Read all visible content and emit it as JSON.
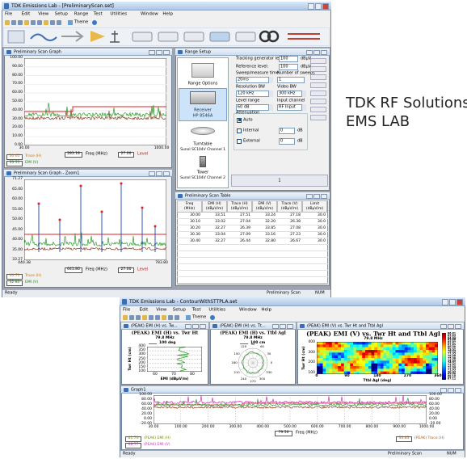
{
  "top": {
    "title": "TDK Emissions Lab - [PreliminaryScan.set]",
    "menu": [
      "File",
      "Edit",
      "View",
      "Setup",
      "Range",
      "Test",
      "Utilities",
      "Window",
      "Help"
    ],
    "theme": "Theme",
    "graph": {
      "title": "Preliminary Scan Graph",
      "yticks": [
        "100.00",
        "90.00",
        "80.00",
        "70.00",
        "60.00",
        "50.00",
        "40.00",
        "30.00",
        "20.00",
        "10.00",
        "0.00"
      ],
      "xticks": [
        "30.00",
        "1000.00"
      ],
      "x_label": "Freq (MHz)",
      "marker_freq": "283.18",
      "marker_level": "27.00",
      "level_label": "Level",
      "readouts": [
        {
          "value": "30.61",
          "name": "Trace (H)"
        },
        {
          "value": "33.51",
          "name": "EMI (V)"
        }
      ]
    },
    "zoom": {
      "title": "Preliminary Scan Graph - Zoom1",
      "yticks": [
        "71.27",
        "65.00",
        "60.00",
        "55.00",
        "50.00",
        "45.00",
        "40.00",
        "35.00",
        "33.27"
      ],
      "xticks": [
        "440.38",
        "783.80"
      ],
      "x_label": "Freq (MHz)",
      "marker_freq": "641.80",
      "marker_level": "27.00",
      "level_label": "Level",
      "readouts": [
        {
          "value": "40.71",
          "name": "Trace (H)"
        },
        {
          "value": "32.80",
          "name": "EMI (V)"
        }
      ]
    },
    "range_setup": {
      "title": "Range Setup",
      "devices": [
        [
          "Range Options"
        ],
        [
          "Receiver",
          "HP 8546A"
        ],
        [
          "Turntable",
          "Sunol SC104V Channel 1"
        ],
        [
          "Tower",
          "Sunol SC104V Channel 2"
        ]
      ],
      "tracking": {
        "label": "Tracking generator level:",
        "value": "100",
        "unit": "dBµV"
      },
      "reference": {
        "label": "Reference level:",
        "value": "100",
        "unit": "dBµV"
      },
      "sweep_time": {
        "label": "Sweep/measure time",
        "value": "20ms"
      },
      "sweeps": {
        "label": "Number of sweeps",
        "value": "1"
      },
      "rbw": {
        "label": "Resolution BW",
        "value": "120 kHz"
      },
      "vbw": {
        "label": "Video BW",
        "value": "300 kHz"
      },
      "level_range": {
        "label": "Level range",
        "value": "60 dB"
      },
      "input": {
        "label": "Input channel",
        "value": "RF Input"
      },
      "attenuation": {
        "label": "Attenuation",
        "auto": "Auto",
        "internal": "Internal",
        "internal_value": "0",
        "external": "External",
        "external_value": "0",
        "unit": "dB"
      },
      "page": "1"
    },
    "table": {
      "title": "Preliminary Scan Table",
      "headers": [
        [
          "Freq",
          "(MHz)"
        ],
        [
          "EMI (H)",
          "(dBµV/m)"
        ],
        [
          "Trace (H)",
          "(dBµV/m)"
        ],
        [
          "EMI (V)",
          "(dBµV/m)"
        ],
        [
          "Trace (V)",
          "(dBµV/m)"
        ],
        [
          "Limit",
          "(dBµV/m)"
        ]
      ],
      "rows": [
        [
          "30.00",
          "33.51",
          "27.51",
          "33.24",
          "27.18",
          "30.0"
        ],
        [
          "30.10",
          "33.02",
          "27.04",
          "32.20",
          "26.38",
          "30.0"
        ],
        [
          "30.20",
          "32.27",
          "26.39",
          "33.85",
          "27.08",
          "30.0"
        ],
        [
          "30.30",
          "33.04",
          "27.09",
          "33.16",
          "27.23",
          "30.0"
        ],
        [
          "30.40",
          "32.27",
          "26.44",
          "32.80",
          "26.67",
          "30.0"
        ]
      ]
    },
    "status": [
      "Ready",
      "Preliminary Scan",
      "NUM"
    ]
  },
  "caption": {
    "line1": "TDK RF Solutions",
    "line2": "EMS LAB"
  },
  "bottom": {
    "title": "TDK Emissions Lab - ContourWithSTTPLA.set",
    "menu": [
      "File",
      "Edit",
      "View",
      "Setup",
      "Test",
      "Utilities",
      "Window",
      "Help"
    ],
    "theme": "Theme",
    "panel1": {
      "window_title": "(PEAK) EMI (H) vs. Tw...",
      "title": "(PEAK) EMI (H) vs. Twr Ht",
      "freq": "79.8 MHz",
      "legend": "100 deg",
      "y_label": "Twr Ht (cm)",
      "yticks": [
        "400",
        "350",
        "300",
        "250",
        "200",
        "150",
        "100"
      ],
      "xticks": [
        "60",
        "70",
        "80"
      ],
      "x_label": "EMI (dBµV/m)"
    },
    "panel2": {
      "window_title": "(PEAK) EMI (H) vs. Tt...",
      "title": "(PEAK) EMI (H) vs. Ttbl Agl",
      "freq": "79.8 MHz",
      "legend": "100 cm",
      "angles": [
        "0",
        "30",
        "60",
        "90",
        "120",
        "150",
        "180",
        "210",
        "240",
        "270",
        "300",
        "330"
      ]
    },
    "panel3": {
      "window_title": "(PEAK) EMI (V) vs. Twr Ht and Ttbl Agl",
      "title": "(PEAK) EMI (V) vs. Twr Ht and Ttbl Agl",
      "freq": "79.8 MHz",
      "y_label": "Twr Ht (cm)",
      "yticks": [
        "400",
        "300",
        "200",
        "100"
      ],
      "xticks": [
        "0",
        "90",
        "180",
        "270",
        "360"
      ],
      "x_label": "Ttbl Agl (deg)",
      "colorbar": [
        "86.81",
        "85.83",
        "84.84",
        "83.86",
        "82.87",
        "81.89",
        "80.90",
        "79.92",
        "78.93",
        "77.95",
        "76.96",
        "75.98",
        "74.99",
        "74.01",
        "73.02",
        "72.04",
        "71.05",
        "70.07",
        "69.08",
        "68.10",
        "67.11"
      ]
    },
    "graph1": {
      "window_title": "Graph1",
      "yticks": [
        "100.00",
        "80.00",
        "60.00",
        "40.00",
        "20.00",
        "0.00",
        "-20.00"
      ],
      "xticks": [
        "30.00",
        "100.00",
        "200.00",
        "300.00",
        "400.00",
        "500.00",
        "600.00",
        "700.00",
        "800.00",
        "900.00",
        "1000.00"
      ],
      "x_label": "Freq (MHz)",
      "marker": "79.50",
      "readouts": [
        {
          "value": "61.70",
          "name": "(PEAK) EMI (H)"
        },
        {
          "value": "68.77",
          "name": "(PEAK) EMI (V)"
        },
        {
          "value": "33.83",
          "name": "(PEAK) Trace (H)"
        }
      ]
    },
    "status": [
      "Ready",
      "Preliminary Scan",
      "NUM"
    ]
  }
}
